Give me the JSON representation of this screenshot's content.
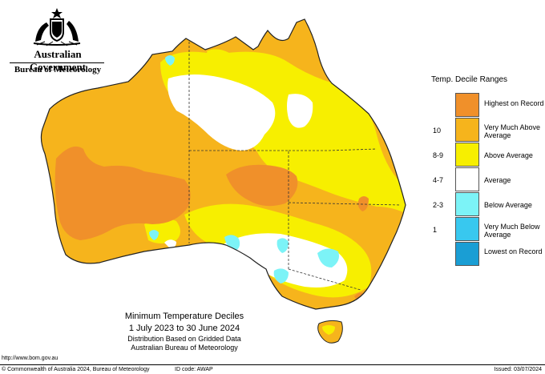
{
  "header": {
    "government": "Australian Government",
    "bureau": "Bureau of Meteorology"
  },
  "legend": {
    "title": "Temp. Decile Ranges",
    "items": [
      {
        "label": "Highest on Record",
        "range": "",
        "color": "#f0902a"
      },
      {
        "label": "Very Much Above Average",
        "range": "10",
        "color": "#f6b41c"
      },
      {
        "label": "Above Average",
        "range": "8-9",
        "color": "#f7ef00"
      },
      {
        "label": "Average",
        "range": "4-7",
        "color": "#ffffff"
      },
      {
        "label": "Below Average",
        "range": "2-3",
        "color": "#7cf3f7"
      },
      {
        "label": "Very Much Below Average",
        "range": "1",
        "color": "#38c8ef"
      },
      {
        "label": "Lowest on Record",
        "range": "",
        "color": "#1a9ed4"
      }
    ]
  },
  "caption": {
    "title": "Minimum Temperature Deciles",
    "period": "1 July 2023 to 30 June 2024",
    "basis": "Distribution Based on Gridded Data",
    "agency": "Australian Bureau of Meteorology"
  },
  "footer": {
    "url": "http://www.bom.gov.au",
    "copyright": "© Commonwealth of Australia 2024, Bureau of Meteorology",
    "id_code": "ID code: AWAP",
    "issued": "Issued: 03/07/2024"
  }
}
